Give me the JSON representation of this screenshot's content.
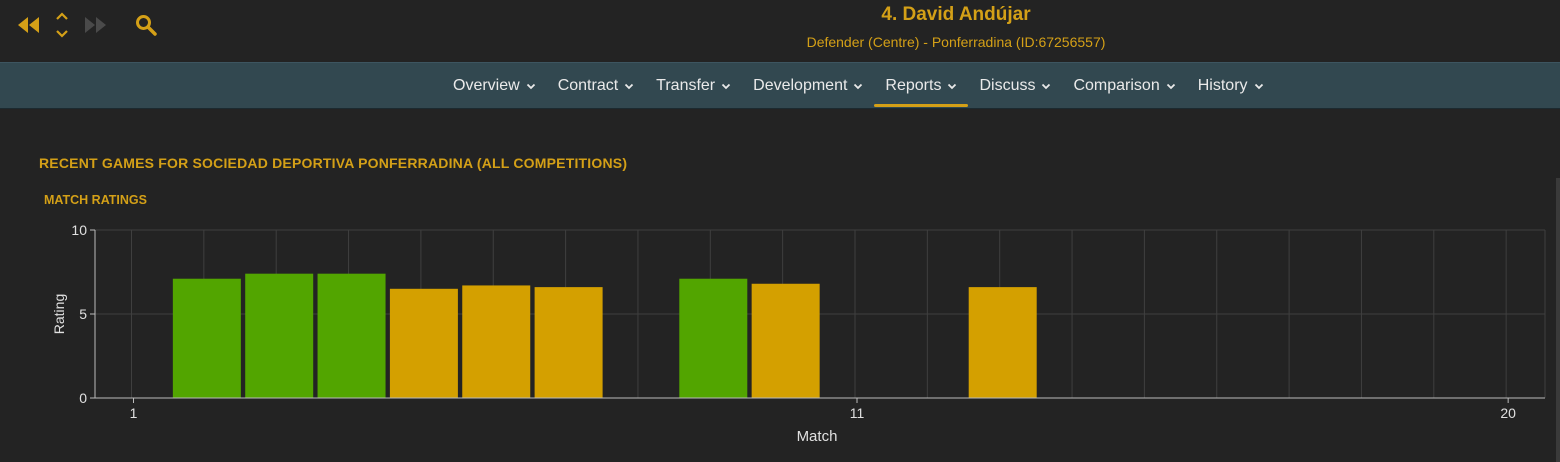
{
  "header": {
    "title": "4. David Andújar",
    "subtitle": "Defender (Centre) - Ponferradina (ID:67256557)",
    "icons": [
      "rewind-icon",
      "up-down-icon",
      "fast-forward-icon",
      "search-icon"
    ]
  },
  "tabs": [
    {
      "label": "Overview",
      "active": false
    },
    {
      "label": "Contract",
      "active": false
    },
    {
      "label": "Transfer",
      "active": false
    },
    {
      "label": "Development",
      "active": false
    },
    {
      "label": "Reports",
      "active": true
    },
    {
      "label": "Discuss",
      "active": false
    },
    {
      "label": "Comparison",
      "active": false
    },
    {
      "label": "History",
      "active": false
    }
  ],
  "section": {
    "title": "RECENT GAMES FOR SOCIEDAD DEPORTIVA PONFERRADINA (ALL COMPETITIONS)"
  },
  "chart_data": {
    "type": "bar",
    "title": "MATCH RATINGS",
    "xlabel": "Match",
    "ylabel": "Rating",
    "ylim": [
      0,
      10
    ],
    "xlim": [
      1,
      20
    ],
    "xticks": [
      1,
      11,
      20
    ],
    "yticks": [
      0,
      5,
      10
    ],
    "grid": true,
    "colors": {
      "good": "#52a500",
      "average": "#d4a000"
    },
    "bars": [
      {
        "match": 2,
        "value": 7.1,
        "color": "#52a500"
      },
      {
        "match": 3,
        "value": 7.4,
        "color": "#52a500"
      },
      {
        "match": 4,
        "value": 7.4,
        "color": "#52a500"
      },
      {
        "match": 5,
        "value": 6.5,
        "color": "#d4a000"
      },
      {
        "match": 6,
        "value": 6.7,
        "color": "#d4a000"
      },
      {
        "match": 7,
        "value": 6.6,
        "color": "#d4a000"
      },
      {
        "match": 9,
        "value": 7.1,
        "color": "#52a500"
      },
      {
        "match": 10,
        "value": 6.8,
        "color": "#d4a000"
      },
      {
        "match": 13,
        "value": 6.6,
        "color": "#d4a000"
      }
    ]
  }
}
